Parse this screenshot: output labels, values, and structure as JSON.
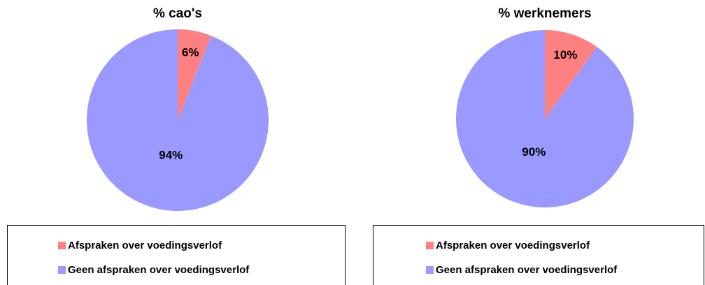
{
  "chart_data": [
    {
      "type": "pie",
      "title": "% cao's",
      "categories": [
        "Afspraken over voedingsverlof",
        "Geen afspraken over voedingsverlof"
      ],
      "values": [
        6,
        94
      ],
      "value_labels": [
        "6%",
        "94%"
      ],
      "colors": [
        "#ff8080",
        "#9999ff"
      ],
      "legend": "bottom"
    },
    {
      "type": "pie",
      "title": "% werknemers",
      "categories": [
        "Afspraken over voedingsverlof",
        "Geen afspraken over voedingsverlof"
      ],
      "values": [
        10,
        90
      ],
      "value_labels": [
        "10%",
        "90%"
      ],
      "colors": [
        "#ff8080",
        "#9999ff"
      ],
      "legend": "bottom"
    }
  ]
}
